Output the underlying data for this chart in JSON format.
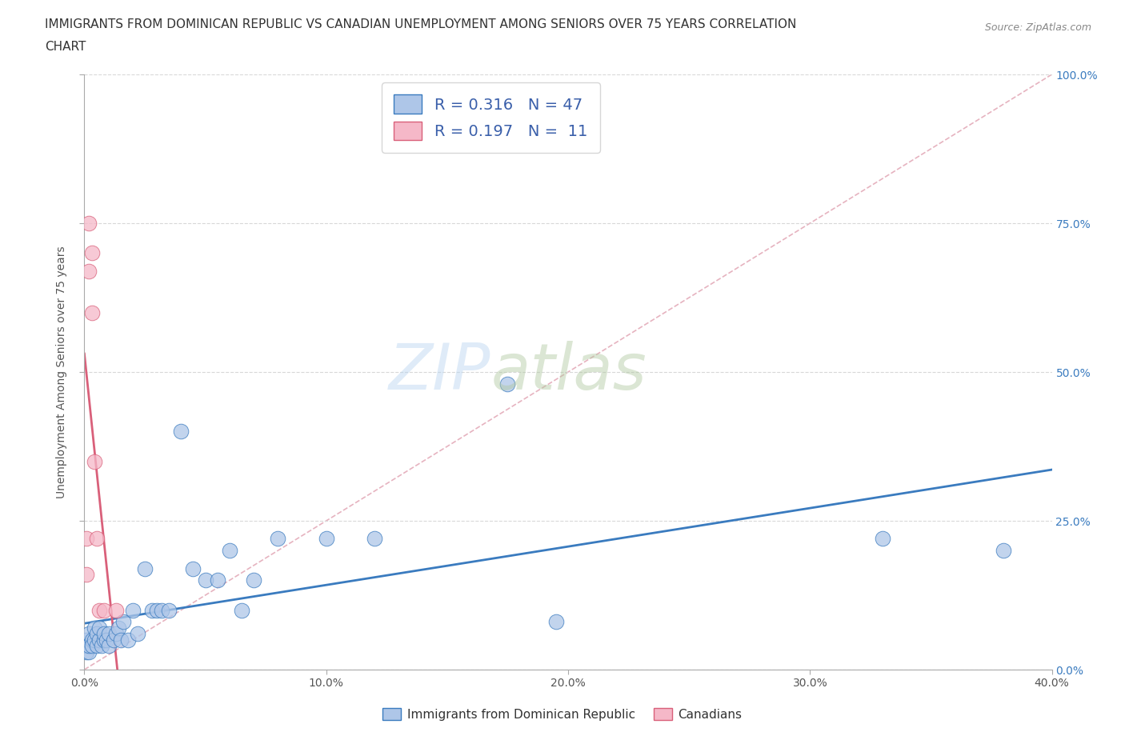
{
  "title_line1": "IMMIGRANTS FROM DOMINICAN REPUBLIC VS CANADIAN UNEMPLOYMENT AMONG SENIORS OVER 75 YEARS CORRELATION",
  "title_line2": "CHART",
  "source": "Source: ZipAtlas.com",
  "xlabel": "Immigrants from Dominican Republic",
  "ylabel": "Unemployment Among Seniors over 75 years",
  "xmin": 0.0,
  "xmax": 0.4,
  "ymin": 0.0,
  "ymax": 1.0,
  "blue_R": 0.316,
  "blue_N": 47,
  "pink_R": 0.197,
  "pink_N": 11,
  "blue_color": "#aec6e8",
  "pink_color": "#f5b8c8",
  "blue_line_color": "#3a7bbf",
  "pink_line_color": "#d9607a",
  "diagonal_color": "#e0a0b0",
  "grid_color": "#d8d8d8",
  "blue_scatter_x": [
    0.001,
    0.001,
    0.001,
    0.002,
    0.002,
    0.002,
    0.003,
    0.003,
    0.004,
    0.004,
    0.005,
    0.005,
    0.006,
    0.006,
    0.007,
    0.008,
    0.008,
    0.009,
    0.01,
    0.01,
    0.012,
    0.013,
    0.014,
    0.015,
    0.016,
    0.018,
    0.02,
    0.022,
    0.025,
    0.028,
    0.03,
    0.032,
    0.035,
    0.04,
    0.045,
    0.05,
    0.055,
    0.06,
    0.065,
    0.07,
    0.08,
    0.1,
    0.12,
    0.175,
    0.195,
    0.33,
    0.38
  ],
  "blue_scatter_y": [
    0.03,
    0.04,
    0.05,
    0.03,
    0.04,
    0.06,
    0.05,
    0.04,
    0.05,
    0.07,
    0.04,
    0.06,
    0.05,
    0.07,
    0.04,
    0.05,
    0.06,
    0.05,
    0.04,
    0.06,
    0.05,
    0.06,
    0.07,
    0.05,
    0.08,
    0.05,
    0.1,
    0.06,
    0.17,
    0.1,
    0.1,
    0.1,
    0.1,
    0.4,
    0.17,
    0.15,
    0.15,
    0.2,
    0.1,
    0.15,
    0.22,
    0.22,
    0.22,
    0.48,
    0.08,
    0.22,
    0.2
  ],
  "pink_scatter_x": [
    0.001,
    0.001,
    0.002,
    0.002,
    0.003,
    0.003,
    0.004,
    0.005,
    0.006,
    0.008,
    0.013
  ],
  "pink_scatter_y": [
    0.22,
    0.16,
    0.67,
    0.75,
    0.6,
    0.7,
    0.35,
    0.22,
    0.1,
    0.1,
    0.1
  ],
  "xticks": [
    0.0,
    0.1,
    0.2,
    0.3,
    0.4
  ],
  "xtick_labels": [
    "0.0%",
    "10.0%",
    "20.0%",
    "30.0%",
    "40.0%"
  ],
  "yticks": [
    0.0,
    0.25,
    0.5,
    0.75,
    1.0
  ],
  "ytick_labels": [
    "0.0%",
    "25.0%",
    "50.0%",
    "75.0%",
    "100.0%"
  ]
}
